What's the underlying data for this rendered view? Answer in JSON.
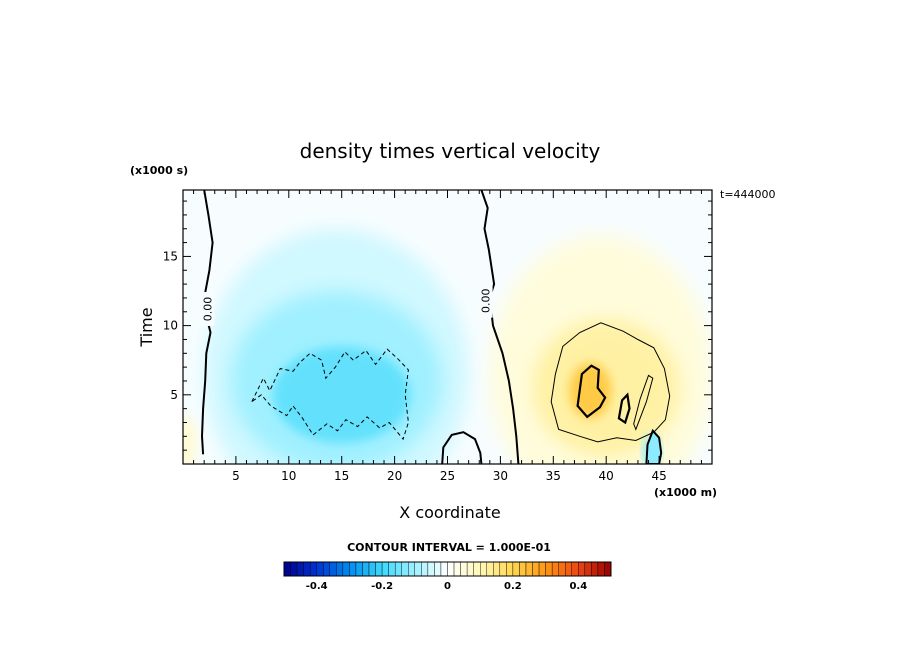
{
  "chart_data": {
    "type": "heatmap",
    "title": "density times vertical velocity",
    "xlabel": "X coordinate",
    "ylabel": "Time",
    "x_units": "(x1000 m)",
    "y_units": "(x1000 s)",
    "annotation": "t=444000",
    "xlim": [
      0,
      50
    ],
    "ylim": [
      0,
      19.8
    ],
    "x_ticks": [
      5,
      10,
      15,
      20,
      25,
      30,
      35,
      40,
      45
    ],
    "y_ticks": [
      5,
      10,
      15
    ],
    "zero_contour_label": "0.00",
    "colorbar": {
      "caption": "CONTOUR INTERVAL = 1.000E-01",
      "range": [
        -0.5,
        0.5
      ],
      "ticks": [
        {
          "value": -0.4,
          "label": "-0.4"
        },
        {
          "value": -0.2,
          "label": "-0.2"
        },
        {
          "value": 0,
          "label": "0"
        },
        {
          "value": 0.2,
          "label": "0.2"
        },
        {
          "value": 0.4,
          "label": "0.4"
        }
      ]
    },
    "zero_contours": [
      {
        "name": "left",
        "points": [
          [
            2.0,
            19.8
          ],
          [
            2.4,
            18
          ],
          [
            2.8,
            16
          ],
          [
            2.5,
            14
          ],
          [
            2.0,
            12
          ],
          [
            2.1,
            11
          ],
          [
            2.6,
            9.5
          ],
          [
            2.2,
            8
          ],
          [
            2.1,
            6
          ],
          [
            1.9,
            4
          ],
          [
            1.8,
            2
          ],
          [
            1.9,
            0.7
          ]
        ]
      },
      {
        "name": "middle",
        "points": [
          [
            28.2,
            19.8
          ],
          [
            28.8,
            18.5
          ],
          [
            28.5,
            17
          ],
          [
            28.9,
            15.5
          ],
          [
            29.4,
            13
          ],
          [
            29.0,
            12
          ],
          [
            29.3,
            10
          ],
          [
            30.2,
            8
          ],
          [
            30.8,
            6
          ],
          [
            31.2,
            4
          ],
          [
            31.5,
            2
          ],
          [
            31.7,
            0
          ]
        ]
      },
      {
        "name": "bottom-arc",
        "points": [
          [
            24.5,
            0
          ],
          [
            24.6,
            1.2
          ],
          [
            25.4,
            2.1
          ],
          [
            26.5,
            2.3
          ],
          [
            27.6,
            1.8
          ],
          [
            28.1,
            0.8
          ],
          [
            28.2,
            0
          ]
        ]
      }
    ],
    "neg_contours": [
      {
        "name": "-0.1",
        "points": [
          [
            6.5,
            4.5
          ],
          [
            7.6,
            6.2
          ],
          [
            8.2,
            5.3
          ],
          [
            9.2,
            6.9
          ],
          [
            10.4,
            6.7
          ],
          [
            11.0,
            7.3
          ],
          [
            12.0,
            8.0
          ],
          [
            13.1,
            7.5
          ],
          [
            13.5,
            6.2
          ],
          [
            14.4,
            7.0
          ],
          [
            15.3,
            8.1
          ],
          [
            16.1,
            7.5
          ],
          [
            17.3,
            8.2
          ],
          [
            18.2,
            7.2
          ],
          [
            19.3,
            8.3
          ],
          [
            20.3,
            7.6
          ],
          [
            21.3,
            6.8
          ],
          [
            21.0,
            5.0
          ],
          [
            21.3,
            3.0
          ],
          [
            20.8,
            1.8
          ],
          [
            19.5,
            3.0
          ],
          [
            18.6,
            2.6
          ],
          [
            17.4,
            3.4
          ],
          [
            16.5,
            2.7
          ],
          [
            15.4,
            3.2
          ],
          [
            14.6,
            2.4
          ],
          [
            13.6,
            2.9
          ],
          [
            12.3,
            2.1
          ],
          [
            11.3,
            3.3
          ],
          [
            10.4,
            4.2
          ],
          [
            9.8,
            3.5
          ],
          [
            8.3,
            4.2
          ],
          [
            7.4,
            5.0
          ],
          [
            6.5,
            4.5
          ]
        ]
      }
    ],
    "pos_contours": [
      {
        "name": "0.1",
        "points": [
          [
            35.5,
            2.5
          ],
          [
            34.8,
            4.5
          ],
          [
            35.2,
            6.5
          ],
          [
            35.9,
            8.5
          ],
          [
            37.5,
            9.5
          ],
          [
            39.5,
            10.2
          ],
          [
            41.6,
            9.6
          ],
          [
            43.0,
            9.0
          ],
          [
            44.5,
            8.4
          ],
          [
            45.5,
            6.9
          ],
          [
            46.0,
            4.9
          ],
          [
            45.6,
            3.2
          ],
          [
            44.5,
            2.3
          ],
          [
            42.8,
            1.7
          ],
          [
            41.0,
            1.9
          ],
          [
            39.2,
            1.6
          ],
          [
            37.5,
            2.0
          ],
          [
            35.5,
            2.5
          ]
        ]
      },
      {
        "name": "0.2-core",
        "points": [
          [
            37.3,
            4.2
          ],
          [
            37.7,
            6.5
          ],
          [
            38.6,
            7.1
          ],
          [
            39.3,
            6.8
          ],
          [
            39.2,
            5.5
          ],
          [
            39.9,
            4.8
          ],
          [
            39.4,
            4.1
          ],
          [
            38.2,
            3.4
          ],
          [
            37.3,
            4.2
          ]
        ]
      },
      {
        "name": "0.2-strip",
        "points": [
          [
            41.2,
            3.3
          ],
          [
            41.5,
            4.6
          ],
          [
            42.0,
            5.0
          ],
          [
            42.2,
            4.0
          ],
          [
            41.8,
            3.0
          ],
          [
            41.2,
            3.3
          ]
        ]
      },
      {
        "name": "0.1-strip",
        "points": [
          [
            42.8,
            2.5
          ],
          [
            43.8,
            4.5
          ],
          [
            44.4,
            6.2
          ],
          [
            44.0,
            6.4
          ],
          [
            43.2,
            4.7
          ],
          [
            42.6,
            2.9
          ],
          [
            42.8,
            2.5
          ]
        ]
      }
    ],
    "blue_pocket": [
      [
        43.8,
        0
      ],
      [
        43.9,
        1.4
      ],
      [
        44.4,
        2.4
      ],
      [
        45.0,
        1.9
      ],
      [
        45.2,
        0.8
      ],
      [
        45.0,
        0
      ]
    ]
  }
}
